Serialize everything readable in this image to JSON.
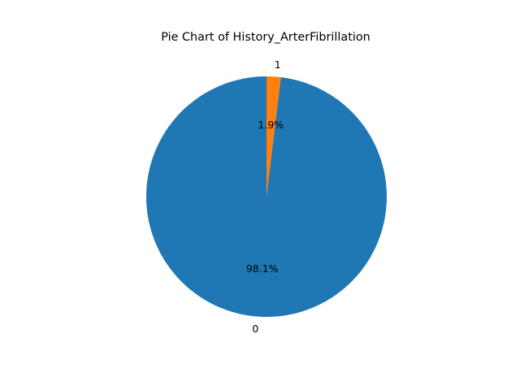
{
  "chart_data": {
    "type": "pie",
    "title": "Pie Chart of History_ArterFibrillation",
    "categories": [
      "0",
      "1"
    ],
    "values": [
      98.1,
      1.9
    ],
    "percent_labels": [
      "98.1%",
      "1.9%"
    ],
    "colors": [
      "#1f77b4",
      "#ff7f0e"
    ],
    "start_angle_deg": 90,
    "direction": "counterclockwise",
    "legend": "none"
  }
}
